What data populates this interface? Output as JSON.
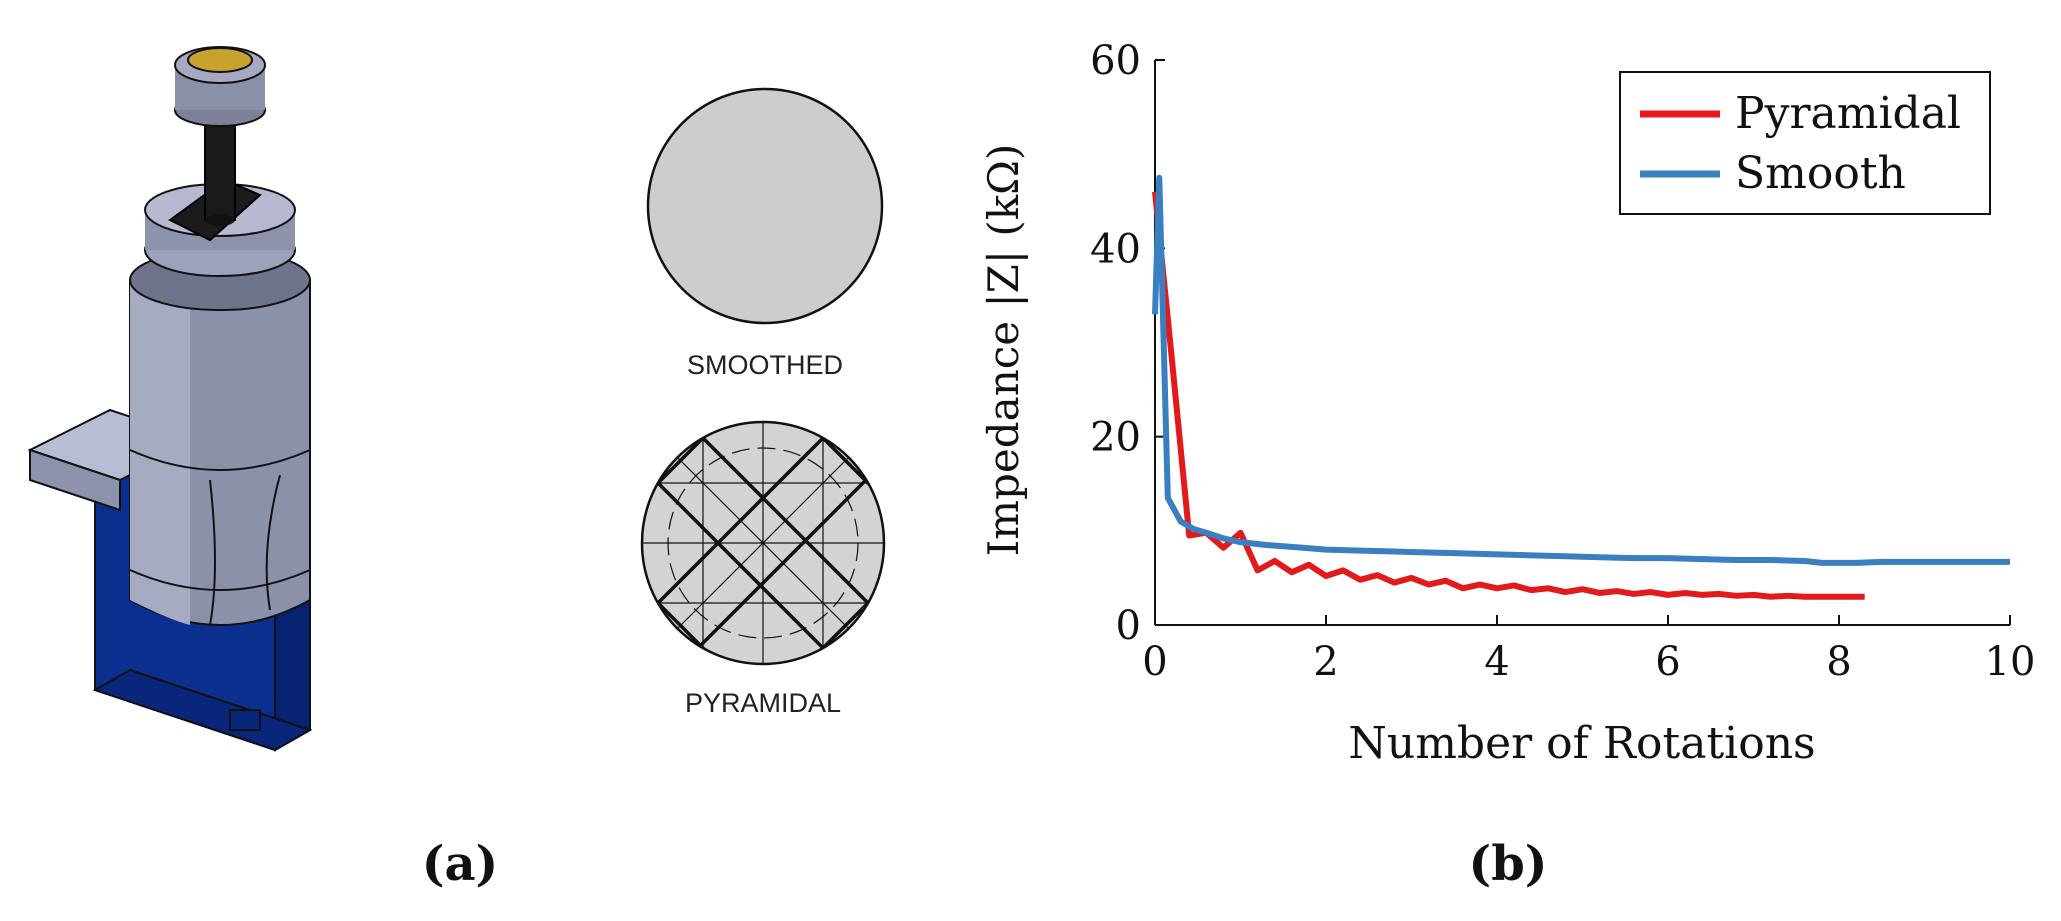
{
  "panel_a": {
    "label": "(a)",
    "smooth_disc_label": "SMOOTHED",
    "pyramidal_disc_label": "PYRAMIDAL"
  },
  "panel_b": {
    "label": "(b)"
  },
  "chart_data": {
    "type": "line",
    "title": "",
    "xlabel": "Number of Rotations",
    "ylabel": "Impedance |Z| (kΩ)",
    "xlim": [
      0,
      10
    ],
    "ylim": [
      0,
      60
    ],
    "xticks": [
      0,
      2,
      4,
      6,
      8,
      10
    ],
    "yticks": [
      0,
      20,
      40,
      60
    ],
    "grid": false,
    "legend_position": "top-right",
    "series": [
      {
        "name": "Pyramidal",
        "color": "#e31a1c",
        "x": [
          0,
          0.2,
          0.4,
          0.6,
          0.8,
          1.0,
          1.2,
          1.4,
          1.6,
          1.8,
          2.0,
          2.2,
          2.4,
          2.6,
          2.8,
          3.0,
          3.2,
          3.4,
          3.6,
          3.8,
          4.0,
          4.2,
          4.4,
          4.6,
          4.8,
          5.0,
          5.2,
          5.4,
          5.6,
          5.8,
          6.0,
          6.2,
          6.4,
          6.6,
          6.8,
          7.0,
          7.2,
          7.4,
          7.6,
          7.8,
          8.0,
          8.3
        ],
        "y": [
          46,
          28,
          9.5,
          9.8,
          8.2,
          9.8,
          5.8,
          6.8,
          5.6,
          6.4,
          5.2,
          5.8,
          4.8,
          5.3,
          4.5,
          5.0,
          4.3,
          4.7,
          3.9,
          4.3,
          3.9,
          4.2,
          3.7,
          3.9,
          3.5,
          3.8,
          3.4,
          3.6,
          3.3,
          3.5,
          3.2,
          3.4,
          3.2,
          3.3,
          3.1,
          3.2,
          3.0,
          3.1,
          3.0,
          3.0,
          3.0,
          3.0
        ]
      },
      {
        "name": "Smooth",
        "color": "#3a7fbf",
        "x": [
          0,
          0.05,
          0.15,
          0.3,
          0.45,
          0.6,
          0.8,
          1.0,
          1.3,
          1.6,
          2.0,
          2.4,
          2.8,
          3.2,
          3.6,
          4.0,
          4.4,
          4.8,
          5.2,
          5.6,
          6.0,
          6.4,
          6.8,
          7.2,
          7.6,
          7.8,
          8.0,
          8.2,
          8.5,
          9.0,
          9.5,
          10.0
        ],
        "y": [
          33,
          47.5,
          13.5,
          11,
          10.2,
          9.8,
          9.2,
          8.8,
          8.5,
          8.3,
          8.0,
          7.9,
          7.8,
          7.7,
          7.6,
          7.5,
          7.4,
          7.3,
          7.2,
          7.1,
          7.1,
          7.0,
          6.9,
          6.9,
          6.8,
          6.6,
          6.6,
          6.6,
          6.7,
          6.7,
          6.7,
          6.7
        ]
      }
    ]
  }
}
